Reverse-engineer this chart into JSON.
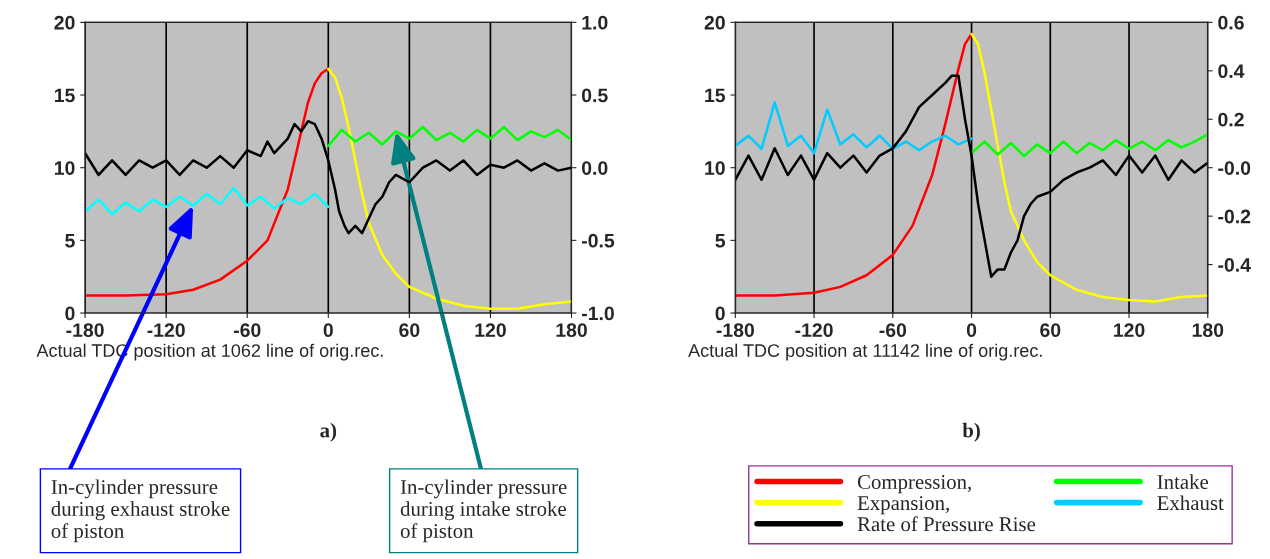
{
  "chart_data": [
    {
      "type": "line",
      "title": "a)",
      "xlabel": "Actual TDC position at 1062 line of orig.rec.",
      "xlim": [
        -180,
        180
      ],
      "xticks": [
        -180,
        -120,
        -60,
        0,
        60,
        120,
        180
      ],
      "ylim": [
        0,
        20
      ],
      "yticks": [
        0,
        5,
        10,
        15,
        20
      ],
      "y2lim": [
        -1,
        1
      ],
      "y2ticks": [
        {
          "value": -1,
          "label": "-1.0"
        },
        {
          "value": -0.5,
          "label": "-0.5"
        },
        {
          "value": 0,
          "label": "0.0"
        },
        {
          "value": 0.5,
          "label": "0.5"
        },
        {
          "value": 1,
          "label": "1.0"
        }
      ],
      "grid": "x",
      "legend": false,
      "series": [
        {
          "color": "#ff0000",
          "x": [
            -180,
            -150,
            -120,
            -100,
            -80,
            -60,
            -45,
            -30,
            -25,
            -20,
            -15,
            -10,
            -5,
            0
          ],
          "values": [
            1.2,
            1.2,
            1.3,
            1.6,
            2.3,
            3.6,
            5.0,
            8.5,
            10.5,
            12.5,
            14.5,
            15.8,
            16.5,
            16.8
          ]
        },
        {
          "color": "#ffff00",
          "x": [
            0,
            5,
            10,
            15,
            20,
            25,
            30,
            40,
            50,
            60,
            80,
            100,
            120,
            140,
            160,
            180
          ],
          "values": [
            16.8,
            16.2,
            14.8,
            12.8,
            10.5,
            8.2,
            6.2,
            4.0,
            2.7,
            1.8,
            1.0,
            0.5,
            0.3,
            0.3,
            0.6,
            0.8
          ]
        },
        {
          "color": "#00ff00",
          "x": [
            0,
            10,
            20,
            30,
            40,
            50,
            60,
            70,
            80,
            90,
            100,
            110,
            120,
            130,
            140,
            150,
            160,
            170,
            180
          ],
          "values": [
            11.5,
            12.6,
            11.8,
            12.4,
            11.6,
            12.5,
            12.0,
            12.8,
            11.9,
            12.4,
            11.8,
            12.6,
            12.0,
            12.8,
            11.9,
            12.5,
            12.1,
            12.6,
            11.9
          ]
        },
        {
          "color": "#00ffff",
          "x": [
            -180,
            -170,
            -160,
            -150,
            -140,
            -130,
            -120,
            -110,
            -100,
            -90,
            -80,
            -70,
            -60,
            -50,
            -40,
            -30,
            -20,
            -10,
            0
          ],
          "values": [
            7.0,
            7.8,
            6.8,
            7.6,
            7.0,
            7.8,
            7.3,
            8.0,
            7.4,
            8.2,
            7.5,
            8.6,
            7.4,
            8.0,
            7.2,
            7.9,
            7.5,
            8.2,
            7.3
          ]
        },
        {
          "color": "#000000",
          "axis": "y2",
          "x": [
            -180,
            -170,
            -160,
            -150,
            -140,
            -130,
            -120,
            -110,
            -100,
            -90,
            -80,
            -70,
            -60,
            -50,
            -45,
            -40,
            -30,
            -25,
            -20,
            -15,
            -10,
            -5,
            0,
            5,
            8,
            12,
            15,
            20,
            25,
            30,
            35,
            40,
            45,
            50,
            60,
            70,
            80,
            90,
            100,
            110,
            120,
            130,
            140,
            150,
            160,
            170,
            180
          ],
          "values": [
            0.1,
            -0.05,
            0.05,
            -0.05,
            0.05,
            0.0,
            0.05,
            -0.05,
            0.05,
            0.0,
            0.08,
            0.0,
            0.12,
            0.08,
            0.18,
            0.1,
            0.2,
            0.3,
            0.25,
            0.32,
            0.3,
            0.2,
            0.05,
            -0.15,
            -0.3,
            -0.4,
            -0.45,
            -0.4,
            -0.45,
            -0.35,
            -0.25,
            -0.2,
            -0.1,
            -0.05,
            -0.1,
            0.0,
            0.05,
            -0.02,
            0.05,
            -0.05,
            0.02,
            0.0,
            0.05,
            -0.02,
            0.03,
            -0.02,
            0.0
          ]
        }
      ],
      "annotations": [
        {
          "text": "In-cylinder pressure\nduring exhaust stroke\nof piston",
          "x": -100,
          "y": 7.4
        },
        {
          "text": "In-cylinder pressure\nduring intake stroke\nof piston",
          "x": 50,
          "y": 12.5
        }
      ]
    },
    {
      "type": "line",
      "title": "b)",
      "xlabel": "Actual TDC position at 11142 line of orig.rec.",
      "xlim": [
        -180,
        180
      ],
      "xticks": [
        -180,
        -120,
        -60,
        0,
        60,
        120,
        180
      ],
      "ylim": [
        0,
        20
      ],
      "yticks": [
        0,
        5,
        10,
        15,
        20
      ],
      "y2lim": [
        -0.6,
        0.6
      ],
      "y2ticks": [
        {
          "value": -0.4,
          "label": "-0.4"
        },
        {
          "value": -0.2,
          "label": "-0.2"
        },
        {
          "value": 0,
          "label": "-0.0"
        },
        {
          "value": 0.2,
          "label": "0.2"
        },
        {
          "value": 0.4,
          "label": "0.4"
        },
        {
          "value": 0.6,
          "label": "0.6"
        }
      ],
      "grid": "x",
      "legend": "bottom",
      "series": [
        {
          "name": "Compression,",
          "color": "#ff0000",
          "x": [
            -180,
            -150,
            -120,
            -100,
            -80,
            -60,
            -45,
            -30,
            -20,
            -10,
            -5,
            0
          ],
          "values": [
            1.2,
            1.2,
            1.4,
            1.8,
            2.6,
            4.0,
            6.0,
            9.5,
            13.0,
            16.8,
            18.5,
            19.2
          ]
        },
        {
          "name": "Expansion,",
          "color": "#ffff00",
          "x": [
            0,
            5,
            10,
            15,
            20,
            25,
            30,
            40,
            50,
            60,
            80,
            100,
            120,
            140,
            160,
            180
          ],
          "values": [
            19.2,
            18.5,
            16.5,
            14.0,
            11.5,
            9.0,
            7.0,
            5.0,
            3.5,
            2.6,
            1.6,
            1.1,
            0.9,
            0.8,
            1.1,
            1.2
          ]
        },
        {
          "name": "Rate of Pressure Rise",
          "color": "#000000",
          "axis": "y2",
          "x": [
            -180,
            -170,
            -160,
            -150,
            -140,
            -130,
            -120,
            -110,
            -100,
            -90,
            -80,
            -70,
            -60,
            -50,
            -40,
            -30,
            -20,
            -15,
            -10,
            -5,
            0,
            5,
            10,
            15,
            20,
            25,
            30,
            35,
            40,
            45,
            50,
            60,
            70,
            80,
            90,
            100,
            110,
            120,
            130,
            140,
            150,
            160,
            170,
            180
          ],
          "values": [
            -0.05,
            0.05,
            -0.05,
            0.08,
            -0.03,
            0.05,
            -0.05,
            0.06,
            0.0,
            0.05,
            -0.02,
            0.05,
            0.08,
            0.15,
            0.25,
            0.3,
            0.35,
            0.38,
            0.38,
            0.2,
            0.05,
            -0.15,
            -0.3,
            -0.45,
            -0.42,
            -0.42,
            -0.35,
            -0.3,
            -0.2,
            -0.15,
            -0.12,
            -0.1,
            -0.05,
            -0.02,
            0.0,
            0.03,
            -0.03,
            0.05,
            -0.02,
            0.05,
            -0.05,
            0.03,
            -0.02,
            0.02
          ]
        },
        {
          "name": "Intake",
          "color": "#00ff00",
          "x": [
            0,
            10,
            20,
            30,
            40,
            50,
            60,
            70,
            80,
            90,
            100,
            110,
            120,
            130,
            140,
            150,
            160,
            170,
            180
          ],
          "values": [
            11.0,
            11.8,
            10.9,
            11.7,
            10.8,
            11.6,
            11.0,
            11.8,
            11.0,
            11.7,
            11.2,
            11.9,
            11.3,
            11.8,
            11.2,
            11.9,
            11.4,
            11.8,
            12.3
          ]
        },
        {
          "name": "Exhaust",
          "color": "#00ccff",
          "x": [
            -180,
            -170,
            -160,
            -150,
            -140,
            -130,
            -120,
            -110,
            -100,
            -90,
            -80,
            -70,
            -60,
            -50,
            -40,
            -30,
            -20,
            -10,
            0
          ],
          "values": [
            11.5,
            12.2,
            11.3,
            14.5,
            11.5,
            12.2,
            11.0,
            14.0,
            11.6,
            12.3,
            11.4,
            12.2,
            11.3,
            11.8,
            11.2,
            11.8,
            12.2,
            11.6,
            12.0
          ]
        }
      ]
    }
  ]
}
